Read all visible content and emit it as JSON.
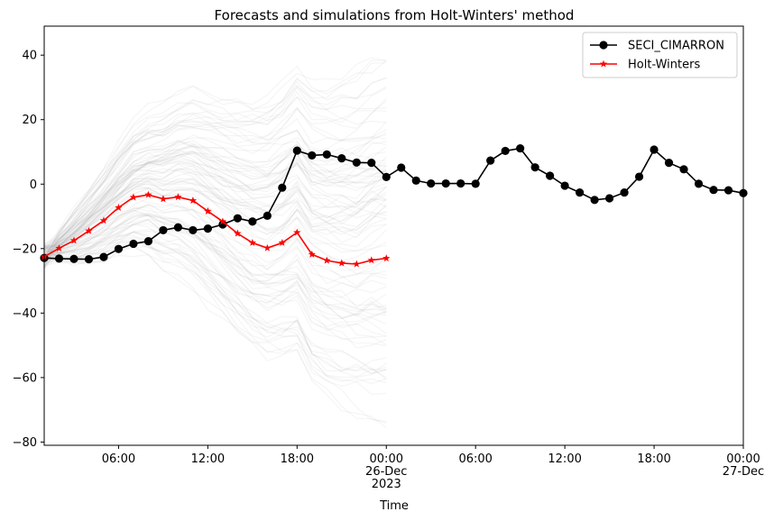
{
  "chart_data": {
    "type": "line",
    "title": "Forecasts and simulations from Holt-Winters' method",
    "xlabel": "Time",
    "ylabel": "",
    "x_unit": "hours from 2023-12-25 00:00",
    "xlim": [
      1,
      48
    ],
    "ylim": [
      -81,
      49
    ],
    "yticks": [
      -80,
      -60,
      -40,
      -20,
      0,
      20,
      40
    ],
    "yticks_labels": [
      "−80",
      "−60",
      "−40",
      "−20",
      "0",
      "20",
      "40"
    ],
    "xticks": [
      {
        "x": 6,
        "lines": [
          "06:00"
        ]
      },
      {
        "x": 12,
        "lines": [
          "12:00"
        ]
      },
      {
        "x": 18,
        "lines": [
          "18:00"
        ]
      },
      {
        "x": 24,
        "lines": [
          "00:00",
          "26-Dec",
          "2023"
        ]
      },
      {
        "x": 30,
        "lines": [
          "06:00"
        ]
      },
      {
        "x": 36,
        "lines": [
          "12:00"
        ]
      },
      {
        "x": 42,
        "lines": [
          "18:00"
        ]
      },
      {
        "x": 48,
        "lines": [
          "00:00",
          "27-Dec"
        ]
      }
    ],
    "legend_position": "top-right",
    "series": [
      {
        "name": "SECI_CIMARRON",
        "color": "#000000",
        "marker": "circle",
        "x": [
          1,
          2,
          3,
          4,
          5,
          6,
          7,
          8,
          9,
          10,
          11,
          12,
          13,
          14,
          15,
          16,
          17,
          18,
          19,
          20,
          21,
          22,
          23,
          24,
          25,
          26,
          27,
          28,
          29,
          30,
          31,
          32,
          33,
          34,
          35,
          36,
          37,
          38,
          39,
          40,
          41,
          42,
          43,
          44,
          45,
          46,
          47,
          48
        ],
        "values": [
          -22.9,
          -23.1,
          -23.2,
          -23.3,
          -22.6,
          -20.1,
          -18.5,
          -17.7,
          -14.3,
          -13.4,
          -14.3,
          -13.8,
          -12.5,
          -10.6,
          -11.6,
          -9.8,
          -1.1,
          10.4,
          8.9,
          9.2,
          8.0,
          6.7,
          6.6,
          2.2,
          5.1,
          1.1,
          0.2,
          0.2,
          0.2,
          0.1,
          7.3,
          10.3,
          11.1,
          5.2,
          2.6,
          -0.5,
          -2.6,
          -4.9,
          -4.4,
          -2.6,
          2.3,
          10.7,
          6.6,
          4.6,
          0.1,
          -1.8,
          -1.9,
          -2.8
        ]
      },
      {
        "name": "Holt-Winters",
        "color": "#ff0000",
        "marker": "star",
        "x": [
          1,
          2,
          3,
          4,
          5,
          6,
          7,
          8,
          9,
          10,
          11,
          12,
          13,
          14,
          15,
          16,
          17,
          18,
          19,
          20,
          21,
          22,
          23,
          24
        ],
        "values": [
          -22.5,
          -19.9,
          -17.5,
          -14.5,
          -11.3,
          -7.3,
          -4.1,
          -3.3,
          -4.6,
          -4.0,
          -5.1,
          -8.4,
          -11.6,
          -15.3,
          -18.2,
          -19.8,
          -18.2,
          -15.0,
          -21.8,
          -23.7,
          -24.5,
          -24.8,
          -23.6,
          -23.0
        ]
      }
    ],
    "simulations": {
      "count": 100,
      "color": "#b0b0b0",
      "x_range": [
        1,
        24
      ],
      "start_value": -22.5,
      "final_low": -74,
      "final_high": 43
    }
  }
}
